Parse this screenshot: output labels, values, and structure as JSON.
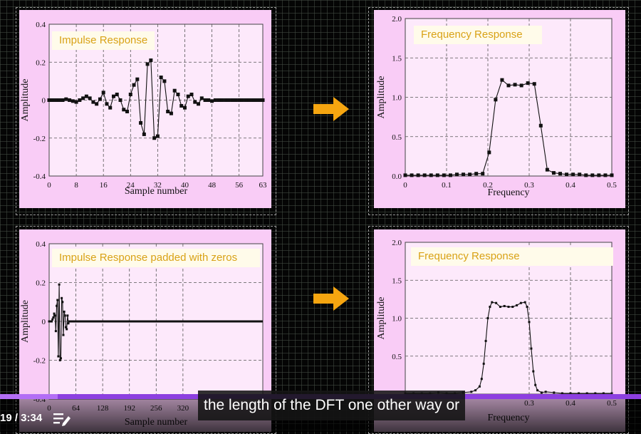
{
  "panels": {
    "tl_title": "Impulse Response",
    "tr_title": "Frequency Response",
    "bl_title": "Impulse Response padded with zeros",
    "br_title": "Frequency Response"
  },
  "colors": {
    "panel_bg": "#f9ccf6",
    "title_text": "#d9a216",
    "arrow": "#f5a510",
    "progress": "#8d3fe0"
  },
  "video": {
    "time": "19 / 3:34",
    "caption": "the length of the DFT one other way or",
    "progress": 0.09
  },
  "chart_data": [
    {
      "type": "line",
      "xlabel": "Sample number",
      "ylabel": "Amplitude",
      "xlim": [
        0,
        63
      ],
      "ylim": [
        -0.4,
        0.4
      ],
      "xticks": [
        0,
        8,
        16,
        24,
        32,
        40,
        48,
        56,
        63
      ],
      "yticks": [
        -0.4,
        -0.2,
        0,
        0.2,
        0.4
      ],
      "grid": true,
      "x": [
        0,
        1,
        2,
        3,
        4,
        5,
        6,
        7,
        8,
        9,
        10,
        11,
        12,
        13,
        14,
        15,
        16,
        17,
        18,
        19,
        20,
        21,
        22,
        23,
        24,
        25,
        26,
        27,
        28,
        29,
        30,
        31,
        32,
        33,
        34,
        35,
        36,
        37,
        38,
        39,
        40,
        41,
        42,
        43,
        44,
        45,
        46,
        47,
        48,
        49,
        50,
        51,
        52,
        53,
        54,
        55,
        56,
        57,
        58,
        59,
        60,
        61,
        62,
        63
      ],
      "y": [
        0,
        0,
        0,
        0,
        0,
        0.005,
        0,
        -0.005,
        -0.01,
        0,
        0.01,
        0.02,
        0.01,
        -0.01,
        -0.02,
        0.005,
        0.04,
        -0.02,
        -0.04,
        0.02,
        0.03,
        0,
        -0.05,
        -0.06,
        0.03,
        0.08,
        0.11,
        -0.12,
        -0.18,
        0.19,
        0.21,
        -0.2,
        -0.19,
        0.12,
        0.1,
        -0.06,
        -0.07,
        0.05,
        0.03,
        -0.03,
        -0.04,
        0.02,
        0.03,
        -0.01,
        -0.02,
        0.01,
        0,
        0,
        -0.005,
        0,
        0,
        0,
        0,
        0,
        0,
        0,
        0,
        0,
        0,
        0,
        0,
        0,
        0,
        0
      ]
    },
    {
      "type": "line",
      "xlabel": "Frequency",
      "ylabel": "Amplitude",
      "xlim": [
        0,
        0.5
      ],
      "ylim": [
        0,
        2.0
      ],
      "xticks": [
        0,
        0.1,
        0.2,
        0.3,
        0.4,
        0.5
      ],
      "xtick_labels": [
        "0",
        "0.1",
        "0.2",
        "0.3",
        "0.4",
        "0.5"
      ],
      "yticks": [
        0,
        0.5,
        1.0,
        1.5,
        2.0
      ],
      "ytick_labels": [
        "0.0",
        "0.5",
        "1.0",
        "1.5",
        "2.0"
      ],
      "grid": true,
      "x": [
        0,
        0.015625,
        0.03125,
        0.046875,
        0.0625,
        0.078125,
        0.09375,
        0.109375,
        0.125,
        0.140625,
        0.15625,
        0.171875,
        0.1875,
        0.203125,
        0.21875,
        0.234375,
        0.25,
        0.265625,
        0.28125,
        0.296875,
        0.3125,
        0.328125,
        0.34375,
        0.359375,
        0.375,
        0.390625,
        0.40625,
        0.421875,
        0.4375,
        0.453125,
        0.46875,
        0.484375,
        0.5
      ],
      "y": [
        0.01,
        0.01,
        0.01,
        0.01,
        0.01,
        0.01,
        0.01,
        0.01,
        0.02,
        0.02,
        0.02,
        0.03,
        0.03,
        0.3,
        0.97,
        1.22,
        1.15,
        1.16,
        1.15,
        1.18,
        1.17,
        0.64,
        0.08,
        0.04,
        0.03,
        0.02,
        0.02,
        0.02,
        0.01,
        0.01,
        0.01,
        0.01,
        0.01
      ]
    },
    {
      "type": "line",
      "xlabel": "Sample number",
      "ylabel": "Amplitude",
      "xlim": [
        0,
        511
      ],
      "ylim": [
        -0.4,
        0.4
      ],
      "xticks": [
        0,
        64,
        128,
        192,
        256,
        320
      ],
      "yticks": [
        -0.4,
        -0.2,
        0,
        0.2,
        0.4
      ],
      "grid": true,
      "x": [
        0,
        2,
        4,
        6,
        8,
        10,
        12,
        14,
        16,
        18,
        20,
        22,
        24,
        26,
        28,
        30,
        32,
        34,
        36,
        38,
        40,
        42,
        44,
        46,
        48,
        50,
        52,
        54,
        56,
        58,
        60,
        62
      ],
      "y": [
        0,
        0,
        0,
        0,
        0.01,
        0.02,
        0.04,
        0.03,
        -0.05,
        0.08,
        0.11,
        -0.18,
        0.19,
        -0.2,
        -0.19,
        0.12,
        0.1,
        -0.07,
        0.05,
        0.03,
        -0.03,
        -0.04,
        0.03,
        -0.01,
        0,
        0,
        0,
        0,
        0,
        0,
        0,
        0
      ]
    },
    {
      "type": "line",
      "xlabel": "Frequency",
      "ylabel": "Amplitude",
      "xlim": [
        0,
        0.5
      ],
      "ylim": [
        0,
        2.0
      ],
      "xticks": [
        0.3,
        0.4,
        0.5
      ],
      "yticks": [
        0.5,
        1.0,
        1.5,
        2.0
      ],
      "ytick_labels": [
        "0.5",
        "1.0",
        "1.5",
        "2.0"
      ],
      "grid": true,
      "x": [
        0,
        0.02,
        0.04,
        0.06,
        0.08,
        0.1,
        0.12,
        0.14,
        0.16,
        0.17,
        0.18,
        0.185,
        0.19,
        0.195,
        0.2,
        0.205,
        0.21,
        0.22,
        0.23,
        0.24,
        0.25,
        0.26,
        0.27,
        0.28,
        0.29,
        0.295,
        0.3,
        0.305,
        0.31,
        0.315,
        0.32,
        0.33,
        0.34,
        0.36,
        0.38,
        0.4,
        0.42,
        0.44,
        0.46,
        0.48,
        0.5
      ],
      "y": [
        0.01,
        0.01,
        0.01,
        0.01,
        0.02,
        0.01,
        0.01,
        0.02,
        0.03,
        0.05,
        0.1,
        0.2,
        0.4,
        0.7,
        1.0,
        1.15,
        1.21,
        1.2,
        1.15,
        1.16,
        1.15,
        1.15,
        1.17,
        1.2,
        1.21,
        1.15,
        0.95,
        0.6,
        0.3,
        0.12,
        0.05,
        0.02,
        0.03,
        0.02,
        0.01,
        0.01,
        0.01,
        0.01,
        0.01,
        0.01,
        0.01
      ]
    }
  ]
}
